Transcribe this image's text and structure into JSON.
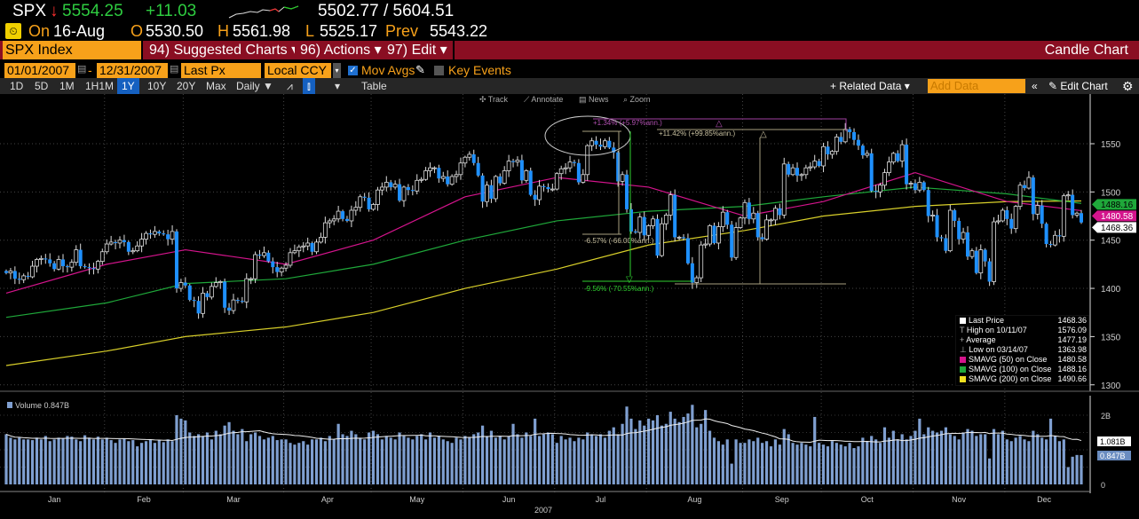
{
  "quote": {
    "ticker": "SPX",
    "direction": "down",
    "last": "5554.25",
    "change": "+11.03",
    "range": "5502.77 / 5604.51",
    "on_label": "On",
    "date": "16-Aug",
    "open_label": "O",
    "open": "5530.50",
    "high_label": "H",
    "high": "5561.98",
    "low_label": "L",
    "low": "5525.17",
    "prev_label": "Prev",
    "prev": "5543.22"
  },
  "menubar": {
    "security": "SPX Index",
    "suggested": "94) Suggested Charts ▾",
    "actions": "96) Actions ▾",
    "edit": "97) Edit ▾",
    "title": "Candle Chart"
  },
  "settings": {
    "start_date": "01/01/2007",
    "dash": "-",
    "end_date": "12/31/2007",
    "field": "Last Px",
    "currency": "Local CCY",
    "mov_avgs": "Mov Avgs",
    "mov_avgs_checked": true,
    "key_events": "Key Events",
    "key_events_checked": false
  },
  "toolbar": {
    "periods": [
      "1D",
      "5D",
      "1M",
      "1H1M",
      "1Y",
      "10Y",
      "20Y",
      "Max"
    ],
    "selected_period": "1Y",
    "frequency": "Daily ▼",
    "table": "Table",
    "related_data": "+ Related Data ▾",
    "add_data_placeholder": "Add Data",
    "collapse": "«",
    "edit_chart": "Edit Chart"
  },
  "chart_tools": [
    "Track",
    "Annotate",
    "News",
    "Zoom"
  ],
  "colors": {
    "up": "#000000",
    "down": "#1e90ff",
    "sma50": "#d4148c",
    "sma100": "#1fa83a",
    "sma200": "#d8cf2a",
    "volume": "#7f9fd0",
    "header_red": "#8a0e22",
    "accent_orange": "#f7a11a"
  },
  "chart_data": {
    "type": "candlestick",
    "year_label": "2007",
    "y_ticks": [
      1550,
      1500,
      1450,
      1400,
      1350,
      1300
    ],
    "ylim": [
      1290,
      1600
    ],
    "months": [
      {
        "month": "Jan",
        "closes": [
          1416,
          1418,
          1410,
          1409,
          1413,
          1412,
          1423,
          1430,
          1431,
          1430,
          1426,
          1420,
          1430,
          1423,
          1422,
          1427,
          1440,
          1423,
          1422,
          1421,
          1420,
          1428,
          1438
        ],
        "volume": [
          1.45,
          1.35,
          1.3,
          1.35,
          1.3,
          1.3,
          1.28,
          1.35,
          1.3,
          1.4,
          1.25,
          1.3,
          1.35,
          1.32,
          1.4,
          1.38,
          1.3,
          1.25,
          1.42,
          1.35,
          1.3,
          1.38,
          1.3
        ]
      },
      {
        "month": "Feb",
        "closes": [
          1446,
          1448,
          1447,
          1450,
          1448,
          1438,
          1439,
          1444,
          1451,
          1457,
          1456,
          1459,
          1457,
          1456,
          1451,
          1459,
          1400,
          1406
        ],
        "volume": [
          1.35,
          1.28,
          1.2,
          1.3,
          1.32,
          1.25,
          1.28,
          1.1,
          1.2,
          1.25,
          1.3,
          1.2,
          1.28,
          1.22,
          1.3,
          1.25,
          2.0,
          1.9
        ]
      },
      {
        "month": "Mar",
        "closes": [
          1403,
          1388,
          1387,
          1374,
          1395,
          1391,
          1402,
          1406,
          1407,
          1380,
          1377,
          1388,
          1387,
          1386,
          1410,
          1410,
          1435,
          1434,
          1437,
          1428,
          1422,
          1417,
          1421
        ],
        "volume": [
          1.85,
          1.5,
          1.4,
          1.45,
          1.4,
          1.5,
          1.3,
          1.55,
          1.45,
          1.7,
          1.8,
          1.55,
          1.45,
          1.6,
          1.25,
          1.45,
          1.5,
          1.4,
          1.3,
          1.35,
          1.4,
          1.28,
          1.3
        ]
      },
      {
        "month": "Apr",
        "closes": [
          1424,
          1437,
          1439,
          1443,
          1444,
          1447,
          1438,
          1448,
          1453,
          1468,
          1470,
          1472,
          1480,
          1472,
          1470,
          1481,
          1484,
          1495,
          1494,
          1482
        ],
        "volume": [
          1.3,
          1.2,
          1.15,
          1.2,
          1.25,
          1.15,
          1.3,
          1.3,
          1.35,
          1.25,
          1.4,
          1.3,
          1.75,
          1.45,
          1.4,
          1.55,
          1.45,
          1.35,
          1.3,
          1.5
        ]
      },
      {
        "month": "May",
        "closes": [
          1487,
          1502,
          1505,
          1510,
          1505,
          1508,
          1491,
          1505,
          1502,
          1501,
          1512,
          1513,
          1522,
          1525,
          1525,
          1514,
          1516,
          1508,
          1516,
          1518,
          1530
        ],
        "volume": [
          1.55,
          1.45,
          1.3,
          1.4,
          1.35,
          1.3,
          1.5,
          1.4,
          1.35,
          1.3,
          1.4,
          1.45,
          1.3,
          1.5,
          1.35,
          1.4,
          1.3,
          1.25,
          1.2,
          1.35,
          1.3
        ]
      },
      {
        "month": "Jun",
        "closes": [
          1536,
          1539,
          1530,
          1517,
          1490,
          1507,
          1493,
          1516,
          1509,
          1522,
          1532,
          1531,
          1533,
          1512,
          1522,
          1497,
          1492,
          1506,
          1505,
          1503,
          1503
        ],
        "volume": [
          1.4,
          1.35,
          1.45,
          1.5,
          1.7,
          1.4,
          1.55,
          1.35,
          1.4,
          1.3,
          1.4,
          1.75,
          1.45,
          1.35,
          1.5,
          1.4,
          1.9,
          1.4,
          1.45,
          1.5,
          1.45
        ]
      },
      {
        "month": "Jul",
        "closes": [
          1519,
          1524,
          1525,
          1531,
          1530,
          1510,
          1518,
          1548,
          1553,
          1549,
          1547,
          1553,
          1546,
          1541,
          1511,
          1518,
          1482,
          1459,
          1458,
          1474,
          1455
        ],
        "volume": [
          1.2,
          1.4,
          1.3,
          1.35,
          1.25,
          1.35,
          1.3,
          1.5,
          1.45,
          1.4,
          1.45,
          1.35,
          1.55,
          1.65,
          1.45,
          1.75,
          2.25,
          1.9,
          1.6,
          1.85,
          1.7
        ]
      },
      {
        "month": "Aug",
        "closes": [
          1465,
          1472,
          1434,
          1467,
          1476,
          1497,
          1453,
          1453,
          1452,
          1426,
          1406,
          1411,
          1445,
          1446,
          1465,
          1447,
          1464,
          1479,
          1466,
          1432,
          1463,
          1473
        ],
        "volume": [
          1.9,
          1.85,
          2.0,
          1.7,
          1.75,
          2.1,
          1.9,
          1.8,
          1.95,
          2.05,
          2.3,
          1.65,
          1.75,
          2.15,
          1.55,
          1.35,
          1.25,
          1.15,
          1.3,
          0.6,
          1.3,
          1.2
        ]
      },
      {
        "month": "Sep",
        "closes": [
          1489,
          1472,
          1478,
          1453,
          1451,
          1471,
          1471,
          1483,
          1476,
          1529,
          1518,
          1525,
          1517,
          1518,
          1525,
          1526,
          1532,
          1527
        ],
        "volume": [
          1.2,
          1.3,
          1.25,
          1.35,
          1.2,
          1.25,
          1.1,
          1.3,
          1.15,
          1.6,
          1.45,
          1.2,
          1.15,
          1.2,
          1.15,
          1.1,
          1.95,
          1.2
        ]
      },
      {
        "month": "Oct",
        "closes": [
          1547,
          1539,
          1542,
          1557,
          1552,
          1565,
          1562,
          1554,
          1548,
          1538,
          1540,
          1501,
          1500,
          1507,
          1520,
          1531,
          1540,
          1532,
          1549,
          1508,
          1509
        ],
        "volume": [
          1.15,
          1.1,
          1.25,
          1.2,
          1.15,
          1.1,
          1.2,
          1.05,
          1.1,
          1.35,
          1.25,
          1.4,
          1.3,
          1.2,
          1.65,
          1.35,
          1.55,
          1.3,
          1.45,
          1.3,
          1.4
        ]
      },
      {
        "month": "Nov",
        "closes": [
          1502,
          1510,
          1502,
          1475,
          1476,
          1453,
          1452,
          1439,
          1481,
          1470,
          1451,
          1458,
          1433,
          1439,
          1416,
          1440,
          1428,
          1407,
          1469,
          1470,
          1481
        ],
        "volume": [
          1.55,
          1.9,
          1.45,
          1.65,
          1.55,
          1.5,
          1.55,
          1.65,
          1.45,
          1.4,
          1.3,
          1.5,
          1.6,
          1.55,
          1.4,
          1.45,
          1.45,
          0.75,
          1.6,
          1.45,
          1.55
        ]
      },
      {
        "month": "Dec",
        "closes": [
          1472,
          1462,
          1485,
          1507,
          1504,
          1515,
          1477,
          1486,
          1467,
          1446,
          1445,
          1455,
          1454,
          1496,
          1497,
          1476,
          1478,
          1468.36
        ],
        "volume": [
          1.3,
          1.25,
          1.35,
          1.4,
          1.3,
          1.25,
          1.55,
          1.45,
          1.35,
          1.3,
          1.9,
          1.4,
          1.25,
          1.3,
          0.5,
          0.8,
          0.85,
          0.847
        ]
      }
    ],
    "moving_averages": {
      "sma50": [
        1395,
        1425,
        1440,
        1425,
        1450,
        1495,
        1515,
        1505,
        1475,
        1490,
        1520,
        1490,
        1480.58
      ],
      "sma100": [
        1370,
        1385,
        1405,
        1410,
        1425,
        1450,
        1470,
        1480,
        1485,
        1495,
        1505,
        1498,
        1488.16
      ],
      "sma200": [
        1320,
        1335,
        1350,
        1360,
        1375,
        1400,
        1420,
        1445,
        1460,
        1475,
        1485,
        1490,
        1490.66
      ]
    },
    "last_labels": {
      "sma100": "1488.16",
      "sma50": "1480.58",
      "last": "1468.36"
    },
    "annotations": [
      "+1.34% (+5.97%ann.)",
      "+11.42% (+99.85%ann.)",
      "-6.57% (-66.00%ann.)",
      "-9.56% (-70.55%ann.)"
    ],
    "legend": [
      {
        "label": "Last Price",
        "value": "1468.36",
        "color": "#ffffff"
      },
      {
        "label": "High on 10/11/07",
        "value": "1576.09",
        "marker": "T"
      },
      {
        "label": "Average",
        "value": "1477.19",
        "marker": "+"
      },
      {
        "label": "Low on 03/14/07",
        "value": "1363.98",
        "marker": "⊥"
      },
      {
        "label": "SMAVG (50)  on Close",
        "value": "1480.58",
        "color": "#d4148c"
      },
      {
        "label": "SMAVG (100)  on Close",
        "value": "1488.16",
        "color": "#1fa83a"
      },
      {
        "label": "SMAVG (200)  on Close",
        "value": "1490.66",
        "color": "#f0e020"
      }
    ],
    "volume": {
      "label": "Volume 0.847B",
      "ticks": [
        "2B",
        "0"
      ],
      "ylim": [
        0,
        2.4
      ],
      "ma_label": "1.081B",
      "last_label": "0.847B"
    }
  }
}
